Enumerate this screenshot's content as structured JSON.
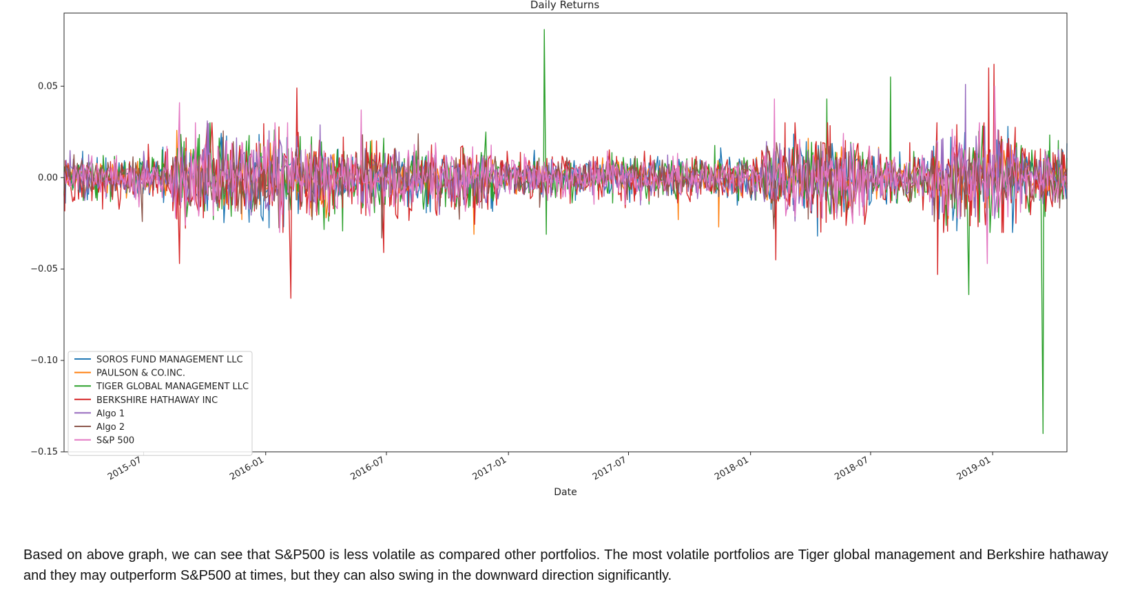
{
  "chart_data": {
    "type": "line",
    "title": "Daily Returns",
    "xlabel": "Date",
    "ylabel": "",
    "x_range": [
      "2015-03-03",
      "2019-04-23"
    ],
    "ylim": [
      -0.15,
      0.09
    ],
    "yticks": [
      0.05,
      0.0,
      -0.05,
      -0.1,
      -0.15
    ],
    "ytick_labels": [
      "0.05",
      "0.00",
      "−0.05",
      "−0.10",
      "−0.15"
    ],
    "xticks": [
      "2015-07-01",
      "2016-01-01",
      "2016-07-01",
      "2017-01-01",
      "2017-07-01",
      "2018-01-01",
      "2018-07-01",
      "2019-01-01"
    ],
    "xtick_labels": [
      "2015-07",
      "2016-01",
      "2016-07",
      "2017-01",
      "2017-07",
      "2018-01",
      "2018-07",
      "2019-01"
    ],
    "grid": false,
    "legend_position": "lower-left",
    "series": [
      {
        "name": "SOROS FUND MANAGEMENT LLC",
        "color": "#1f77b4",
        "anchors": [
          [
            "2017-02-09",
            0.015
          ],
          [
            "2018-04-12",
            -0.032
          ],
          [
            "2019-01-24",
            0.028
          ]
        ]
      },
      {
        "name": "PAULSON & CO.INC.",
        "color": "#ff7f0e",
        "anchors": [
          [
            "2016-04-01",
            -0.022
          ],
          [
            "2016-11-10",
            -0.031
          ],
          [
            "2017-09-14",
            -0.023
          ],
          [
            "2017-11-14",
            -0.027
          ]
        ]
      },
      {
        "name": "TIGER GLOBAL MANAGEMENT LLC",
        "color": "#2ca02c",
        "anchors": [
          [
            "2017-02-24",
            0.081
          ],
          [
            "2017-02-27",
            -0.031
          ],
          [
            "2018-04-26",
            0.043
          ],
          [
            "2018-07-31",
            0.055
          ],
          [
            "2018-11-26",
            -0.064
          ],
          [
            "2019-03-18",
            -0.14
          ],
          [
            "2019-03-20",
            -0.01
          ]
        ]
      },
      {
        "name": "BERKSHIRE HATHAWAY INC",
        "color": "#d62728",
        "anchors": [
          [
            "2015-08-24",
            -0.047
          ],
          [
            "2016-02-08",
            -0.066
          ],
          [
            "2016-02-17",
            0.049
          ],
          [
            "2016-06-27",
            -0.041
          ],
          [
            "2018-02-08",
            -0.045
          ],
          [
            "2018-10-10",
            -0.053
          ],
          [
            "2018-12-26",
            0.06
          ],
          [
            "2019-01-03",
            0.062
          ]
        ]
      },
      {
        "name": "Algo 1",
        "color": "#9467bd",
        "anchors": [
          [
            "2015-10-05",
            0.031
          ],
          [
            "2018-11-21",
            0.051
          ]
        ]
      },
      {
        "name": "Algo 2",
        "color": "#8c564b",
        "anchors": [
          [
            "2015-06-29",
            -0.024
          ],
          [
            "2016-06-24",
            -0.033
          ],
          [
            "2018-02-05",
            -0.028
          ]
        ]
      },
      {
        "name": "S&P 500",
        "color": "#e377c2",
        "anchors": [
          [
            "2015-08-24",
            0.041
          ],
          [
            "2016-05-24",
            0.037
          ],
          [
            "2018-02-06",
            0.043
          ],
          [
            "2018-12-24",
            -0.047
          ],
          [
            "2019-01-04",
            0.05
          ]
        ]
      }
    ]
  },
  "caption": "Based on above graph, we can see that S&P500 is less volatile as compared other portfolios. The most volatile portfolios are Tiger global management and Berkshire hathaway and they may outperform S&P500 at times, but they can also swing in the downward direction significantly."
}
